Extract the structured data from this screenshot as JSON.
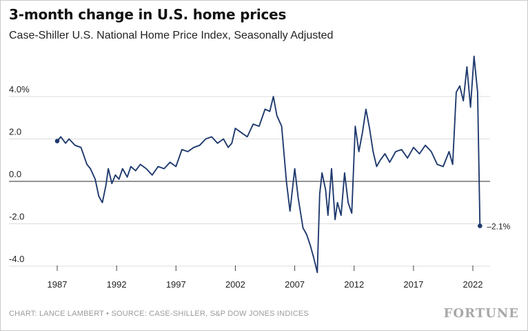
{
  "title": "3-month change in U.S. home prices",
  "subtitle": "Case-Shiller U.S. National Home Price Index, Seasonally Adjusted",
  "footer": "CHART: LANCE LAMBERT • SOURCE: CASE-SHILLER, S&P DOW JONES INDICES",
  "brand": "FORTUNE",
  "colors": {
    "line": "#1f3a6e",
    "grid": "#dcdcdc",
    "zero": "#555555",
    "text": "#222222"
  },
  "chart_data": {
    "type": "line",
    "title": "3-month change in U.S. home prices",
    "subtitle": "Case-Shiller U.S. National Home Price Index, Seasonally Adjusted",
    "xlim": [
      1987,
      2023
    ],
    "ylim": [
      -4.2,
      5.0
    ],
    "y_ticks": [
      {
        "value": 4.0,
        "label": "4.0%"
      },
      {
        "value": 2.0,
        "label": "2.0"
      },
      {
        "value": 0.0,
        "label": "0.0"
      },
      {
        "value": -2.0,
        "label": "-2.0"
      },
      {
        "value": -4.0,
        "label": "-4.0"
      }
    ],
    "x_ticks": [
      {
        "value": 1987,
        "label": "1987"
      },
      {
        "value": 1992,
        "label": "1992"
      },
      {
        "value": 1997,
        "label": "1997"
      },
      {
        "value": 2002,
        "label": "2002"
      },
      {
        "value": 2007,
        "label": "2007"
      },
      {
        "value": 2012,
        "label": "2012"
      },
      {
        "value": 2017,
        "label": "2017"
      },
      {
        "value": 2022,
        "label": "2022"
      }
    ],
    "grid": true,
    "series": [
      {
        "x": [
          1987.0,
          1987.3,
          1987.7,
          1988.0,
          1988.5,
          1989.0,
          1989.5,
          1989.8,
          1990.2,
          1990.5,
          1990.8,
          1991.1,
          1991.3,
          1991.6,
          1991.9,
          1992.2,
          1992.5,
          1992.9,
          1993.2,
          1993.6,
          1994.0,
          1994.5,
          1995.0,
          1995.5,
          1996.0,
          1996.5,
          1997.0,
          1997.5,
          1998.0,
          1998.5,
          1999.0,
          1999.5,
          2000.0,
          2000.5,
          2001.0,
          2001.4,
          2001.7,
          2002.0,
          2002.5,
          2003.0,
          2003.5,
          2004.0,
          2004.5,
          2004.9,
          2005.2,
          2005.5,
          2005.9,
          2006.3,
          2006.6,
          2007.0,
          2007.3,
          2007.7,
          2008.0,
          2008.3,
          2008.6,
          2008.9,
          2009.1,
          2009.3,
          2009.6,
          2009.8,
          2010.1,
          2010.4,
          2010.6,
          2010.9,
          2011.2,
          2011.5,
          2011.8,
          2012.1,
          2012.4,
          2012.7,
          2013.0,
          2013.3,
          2013.6,
          2013.9,
          2014.2,
          2014.6,
          2015.0,
          2015.5,
          2016.0,
          2016.5,
          2017.0,
          2017.5,
          2018.0,
          2018.5,
          2019.0,
          2019.5,
          2020.0,
          2020.3,
          2020.6,
          2020.9,
          2021.2,
          2021.5,
          2021.8,
          2022.1,
          2022.4,
          2022.6
        ],
        "y": [
          1.9,
          2.1,
          1.8,
          2.0,
          1.7,
          1.6,
          0.8,
          0.6,
          0.1,
          -0.7,
          -1.0,
          -0.2,
          0.6,
          -0.1,
          0.3,
          0.1,
          0.6,
          0.2,
          0.7,
          0.5,
          0.8,
          0.6,
          0.3,
          0.7,
          0.6,
          0.9,
          0.7,
          1.5,
          1.4,
          1.6,
          1.7,
          2.0,
          2.1,
          1.8,
          2.0,
          1.6,
          1.8,
          2.5,
          2.3,
          2.1,
          2.7,
          2.6,
          3.4,
          3.3,
          4.0,
          3.1,
          2.6,
          0.0,
          -1.4,
          0.6,
          -0.8,
          -2.2,
          -2.5,
          -3.0,
          -3.6,
          -4.3,
          -0.6,
          0.4,
          -0.4,
          -1.6,
          0.6,
          -1.8,
          -1.0,
          -1.6,
          0.4,
          -1.0,
          -1.5,
          2.6,
          1.4,
          2.3,
          3.4,
          2.5,
          1.4,
          0.7,
          1.0,
          1.3,
          0.9,
          1.4,
          1.5,
          1.1,
          1.6,
          1.3,
          1.7,
          1.4,
          0.8,
          0.7,
          1.4,
          0.8,
          4.2,
          4.5,
          3.8,
          5.4,
          3.5,
          5.9,
          4.2,
          -2.1
        ]
      }
    ],
    "annotations": [
      {
        "x": 2022.6,
        "y": -2.1,
        "label": "–2.1%"
      }
    ]
  }
}
